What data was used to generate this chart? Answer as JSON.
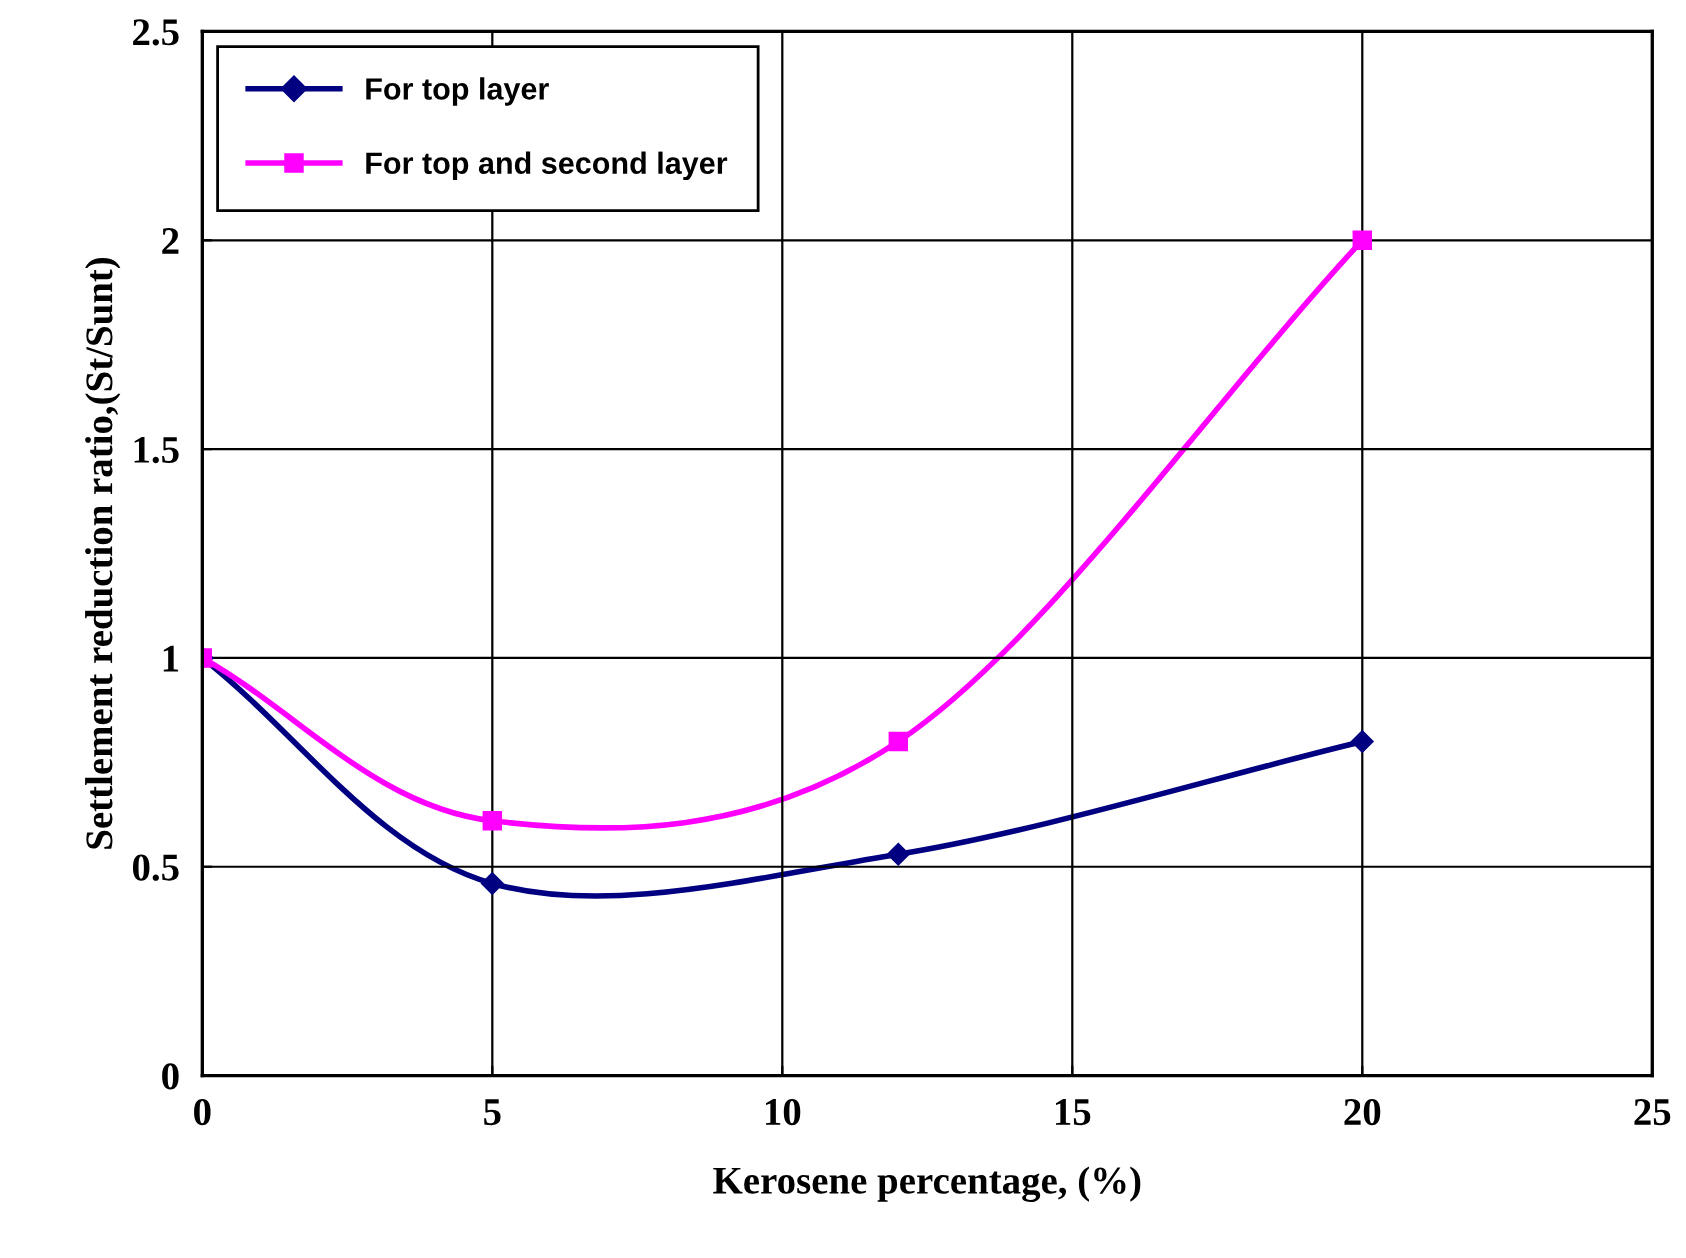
{
  "chart_data": {
    "type": "line",
    "xlabel": "Kerosene percentage, (%)",
    "ylabel": "Settlement reduction ratio,(St/Sunt)",
    "xlim": [
      0,
      25
    ],
    "xticks": [
      0,
      5,
      10,
      15,
      20,
      25
    ],
    "ylim": [
      0,
      2.5
    ],
    "yticks": [
      0,
      0.5,
      1,
      1.5,
      2,
      2.5
    ],
    "grid": true,
    "legend": "top left",
    "line_style": "solid",
    "series": [
      {
        "name": "For top layer",
        "color": "#000080",
        "marker": "diamond",
        "x": [
          0,
          5,
          12,
          20
        ],
        "values": [
          1,
          0.46,
          0.53,
          0.8
        ]
      },
      {
        "name": "For top and second layer",
        "color": "#ff00ff",
        "marker": "square",
        "x": [
          0,
          5,
          12,
          20
        ],
        "values": [
          1,
          0.61,
          0.8,
          2.0
        ]
      }
    ]
  }
}
